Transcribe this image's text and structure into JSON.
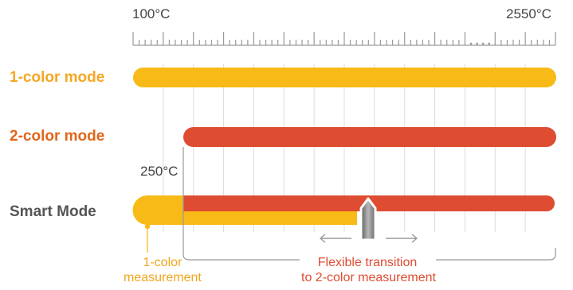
{
  "scale": {
    "min_label": "100°C",
    "max_label": "2550°C",
    "threshold_label": "250°C"
  },
  "modes": [
    {
      "label": "1-color mode",
      "color": "#F6A723"
    },
    {
      "label": "2-color mode",
      "color": "#E0661B"
    },
    {
      "label": "Smart Mode",
      "color": "#555555"
    }
  ],
  "bars": {
    "one_color": "#F8BA17",
    "two_color": "#DE4C32"
  },
  "slider_icon": "transition-slider-icon",
  "annotations": {
    "one_color_measurement": [
      "1-color",
      "measurement"
    ],
    "flexible_transition": [
      "Flexible transition",
      "to 2-color measurement"
    ],
    "one_color_text_color": "#F2A51C",
    "transition_text_color": "#DE4C32"
  }
}
